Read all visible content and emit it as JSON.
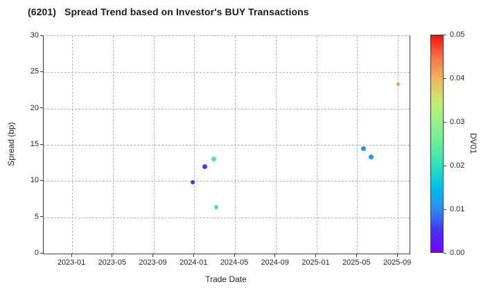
{
  "figure": {
    "title": "(6201)   Spread Trend based on Investor's BUY Transactions"
  },
  "chart_data": {
    "type": "scatter",
    "title": "(6201)   Spread Trend based on Investor's BUY Transactions",
    "xlabel": "Trade Date",
    "ylabel": "Spread (bp)",
    "ylim": [
      0,
      30
    ],
    "grid": true,
    "y_ticks": [
      0,
      5,
      10,
      15,
      20,
      25,
      30
    ],
    "x_ticks": [
      {
        "label": "2023-01",
        "month_index": 0
      },
      {
        "label": "2023-05",
        "month_index": 4
      },
      {
        "label": "2023-09",
        "month_index": 8
      },
      {
        "label": "2024-01",
        "month_index": 12
      },
      {
        "label": "2024-05",
        "month_index": 16
      },
      {
        "label": "2024-09",
        "month_index": 20
      },
      {
        "label": "2025-01",
        "month_index": 24
      },
      {
        "label": "2025-05",
        "month_index": 28
      },
      {
        "label": "2025-09",
        "month_index": 32
      }
    ],
    "colorbar": {
      "label": "DV01",
      "min": 0.0,
      "max": 0.05,
      "ticks": [
        "0.00",
        "0.01",
        "0.02",
        "0.03",
        "0.04",
        "0.05"
      ],
      "colormap": "rainbow",
      "gradient_stops": [
        "#7d00fa",
        "#4433f0",
        "#2e8cf0",
        "#00c0e8",
        "#2ee0b8",
        "#66ee9e",
        "#96f288",
        "#c8ea75",
        "#f0b462",
        "#f4734a",
        "#f01408"
      ]
    },
    "points": [
      {
        "date": "2023-12",
        "month_index": 11.85,
        "spread_bp": 9.8,
        "dv01": 0.004,
        "color": "#4c34e6",
        "size": 6
      },
      {
        "date": "2024-02",
        "month_index": 13.05,
        "spread_bp": 12.0,
        "dv01": 0.004,
        "color": "#4a3ae8",
        "size": 7
      },
      {
        "date": "2024-03",
        "month_index": 13.95,
        "spread_bp": 13.0,
        "dv01": 0.022,
        "color": "#4fe9a4",
        "size": 7
      },
      {
        "date": "2024-03",
        "month_index": 14.15,
        "spread_bp": 6.4,
        "dv01": 0.022,
        "color": "#45e6a0",
        "size": 6
      },
      {
        "date": "2025-05",
        "month_index": 28.6,
        "spread_bp": 14.5,
        "dv01": 0.011,
        "color": "#2397f0",
        "size": 7
      },
      {
        "date": "2025-06",
        "month_index": 29.35,
        "spread_bp": 13.3,
        "dv01": 0.011,
        "color": "#2095ee",
        "size": 7
      },
      {
        "date": "2025-09",
        "month_index": 32.05,
        "spread_bp": 23.4,
        "dv01": 0.04,
        "color": "#f59a52",
        "size": 5
      }
    ]
  }
}
